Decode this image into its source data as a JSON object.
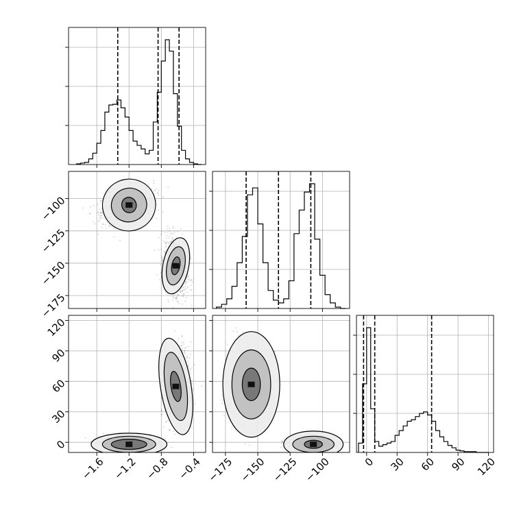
{
  "chart_data": {
    "type": "corner",
    "parameters": [
      {
        "ticks": [
          -1.6,
          -1.2,
          -0.8,
          -0.4
        ],
        "tick_labels": [
          "−1.6",
          "−1.2",
          "−0.8",
          "−0.4"
        ],
        "range": [
          -1.95,
          -0.25
        ]
      },
      {
        "ticks": [
          -175,
          -150,
          -125,
          -100
        ],
        "tick_labels": [
          "−175",
          "−150",
          "−125",
          "−100"
        ],
        "range": [
          -185,
          -79
        ]
      },
      {
        "ticks": [
          0,
          30,
          60,
          90,
          120
        ],
        "tick_labels": [
          "0",
          "30",
          "60",
          "90",
          "120"
        ],
        "range": [
          -10,
          125
        ]
      }
    ],
    "histograms": [
      {
        "param": 0,
        "bins": [
          -1.85,
          -1.8,
          -1.75,
          -1.7,
          -1.65,
          -1.6,
          -1.55,
          -1.5,
          -1.45,
          -1.4,
          -1.35,
          -1.3,
          -1.25,
          -1.2,
          -1.15,
          -1.1,
          -1.05,
          -1.0,
          -0.95,
          -0.9,
          -0.85,
          -0.8,
          -0.75,
          -0.7,
          -0.65,
          -0.6,
          -0.55,
          -0.5,
          -0.45,
          -0.4,
          -0.35,
          -0.3
        ],
        "counts": [
          1,
          2,
          3,
          8,
          16,
          30,
          48,
          74,
          84,
          85,
          91,
          80,
          67,
          48,
          33,
          27,
          22,
          15,
          20,
          60,
          102,
          146,
          176,
          160,
          100,
          54,
          20,
          8,
          3,
          1,
          0
        ],
        "quantiles": [
          -1.34,
          -0.84,
          -0.58
        ]
      },
      {
        "param": 1,
        "bins": [
          -182,
          -178,
          -174,
          -170,
          -166,
          -162,
          -158,
          -154,
          -150,
          -146,
          -142,
          -138,
          -134,
          -130,
          -126,
          -122,
          -118,
          -114,
          -110,
          -106,
          -102,
          -98,
          -94,
          -90,
          -86,
          -82
        ],
        "counts": [
          2,
          6,
          14,
          32,
          66,
          104,
          164,
          174,
          122,
          66,
          26,
          12,
          8,
          14,
          40,
          108,
          142,
          168,
          180,
          100,
          48,
          20,
          8,
          2,
          0
        ],
        "quantiles": [
          -159,
          -134,
          -109
        ]
      },
      {
        "param": 2,
        "bins": [
          -8,
          -4,
          0,
          4,
          8,
          12,
          16,
          20,
          24,
          28,
          32,
          36,
          40,
          44,
          48,
          52,
          56,
          60,
          64,
          68,
          72,
          76,
          80,
          84,
          88,
          92,
          96,
          100,
          104,
          108,
          112,
          116,
          120
        ],
        "counts": [
          12,
          88,
          160,
          56,
          14,
          8,
          10,
          12,
          14,
          22,
          28,
          34,
          40,
          42,
          46,
          50,
          52,
          48,
          40,
          28,
          20,
          14,
          9,
          6,
          3,
          2,
          1,
          1,
          1,
          0,
          0,
          0
        ],
        "quantiles": [
          -3,
          8,
          64
        ]
      }
    ],
    "scatter_panels": [
      {
        "x_param": 0,
        "y_param": 1,
        "modes": [
          {
            "center": [
              -1.22,
              -105
            ],
            "sd": [
              0.16,
              7
            ],
            "rho": 0.4
          },
          {
            "center": [
              -0.62,
              -152
            ],
            "sd": [
              0.07,
              11
            ],
            "rho": -0.25
          }
        ],
        "contours": [
          {
            "center": [
              -1.2,
              -105
            ],
            "rx": [
              0.33,
              0.22,
              0.09
            ],
            "ry": [
              20,
              13,
              6
            ],
            "rho": 0.4
          },
          {
            "center": [
              -0.62,
              -152
            ],
            "rx": [
              0.16,
              0.11,
              0.05
            ],
            "ry": [
              22,
              15,
              7
            ],
            "rho": -0.25
          }
        ]
      },
      {
        "x_param": 0,
        "y_param": 2,
        "modes": [
          {
            "center": [
              -1.2,
              -2
            ],
            "sd": [
              0.16,
              3
            ],
            "rho": 0
          },
          {
            "center": [
              -0.6,
              56
            ],
            "sd": [
              0.07,
              17
            ],
            "rho": 0.2
          }
        ],
        "contours": [
          {
            "center": [
              -1.2,
              -2
            ],
            "rx": [
              0.47,
              0.33,
              0.22
            ],
            "ry": [
              11,
              8,
              5
            ],
            "rho": 0
          },
          {
            "center": [
              -0.62,
              55
            ],
            "rx": [
              0.19,
              0.13,
              0.06
            ],
            "ry": [
              48,
              34,
              15
            ],
            "rho": 0.2
          }
        ]
      },
      {
        "x_param": 1,
        "y_param": 2,
        "modes": [
          {
            "center": [
              -157,
              58
            ],
            "sd": [
              8,
              18
            ],
            "rho": 0
          },
          {
            "center": [
              -107,
              -2
            ],
            "sd": [
              8,
              3
            ],
            "rho": 0
          }
        ],
        "contours": [
          {
            "center": [
              -155,
              57
            ],
            "rx": [
              22,
              15,
              7
            ],
            "ry": [
              52,
              34,
              16
            ],
            "rho": 0
          },
          {
            "center": [
              -107,
              -2
            ],
            "rx": [
              23,
              16,
              7
            ],
            "ry": [
              13,
              8,
              4
            ],
            "rho": 0
          }
        ]
      }
    ]
  }
}
